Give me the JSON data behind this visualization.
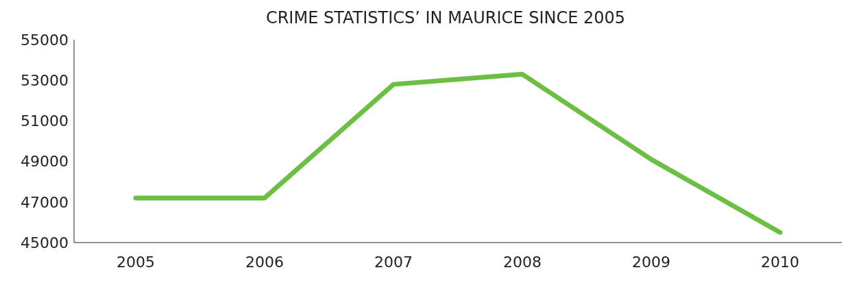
{
  "chart_data": {
    "type": "line",
    "title": "CRIME STATISTICS’ IN MAURICE SINCE 2005",
    "categories": [
      "2005",
      "2006",
      "2007",
      "2008",
      "2009",
      "2010"
    ],
    "series": [
      {
        "color": "#6cbf44",
        "values": [
          47200,
          47200,
          52800,
          53300,
          49100,
          45500
        ]
      }
    ],
    "ylim": [
      45000,
      55000
    ],
    "yticks": [
      45000,
      47000,
      49000,
      51000,
      53000,
      55000
    ],
    "grid": false,
    "legend": false,
    "marker": "none",
    "line_style": "solid"
  }
}
